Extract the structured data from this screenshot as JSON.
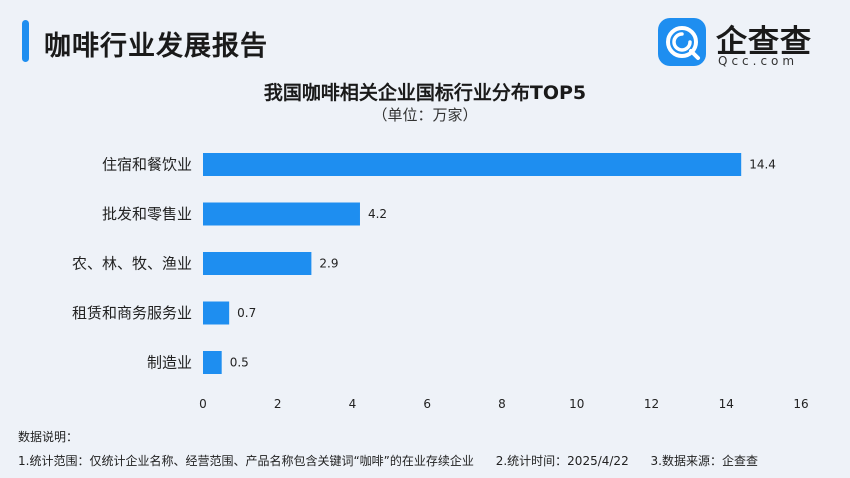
{
  "header": {
    "title": "咖啡行业发展报告",
    "brand_name": "企查查",
    "brand_domain": "Qcc.com"
  },
  "colors": {
    "bar": "#1e8ef0",
    "accent": "#1e8ef0",
    "background": "#eef2f8"
  },
  "chart_data": {
    "type": "bar",
    "orientation": "horizontal",
    "title": "我国咖啡相关企业国标行业分布TOP5",
    "subtitle": "（单位：万家）",
    "categories": [
      "住宿和餐饮业",
      "批发和零售业",
      "农、林、牧、渔业",
      "租赁和商务服务业",
      "制造业"
    ],
    "values": [
      14.4,
      4.2,
      2.9,
      0.7,
      0.5
    ],
    "value_labels": [
      "14.4",
      "4.2",
      "2.9",
      "0.7",
      "0.5"
    ],
    "xlim": [
      0,
      16
    ],
    "xticks": [
      "0",
      "2",
      "4",
      "6",
      "8",
      "10",
      "12",
      "14",
      "16"
    ],
    "grid": false,
    "legend": "none"
  },
  "notes": {
    "heading": "数据说明：",
    "items": [
      "1.统计范围：仅统计企业名称、经营范围、产品名称包含关键词“咖啡”的在业存续企业",
      "2.统计时间：2025/4/22",
      "3.数据来源：企查查"
    ]
  }
}
